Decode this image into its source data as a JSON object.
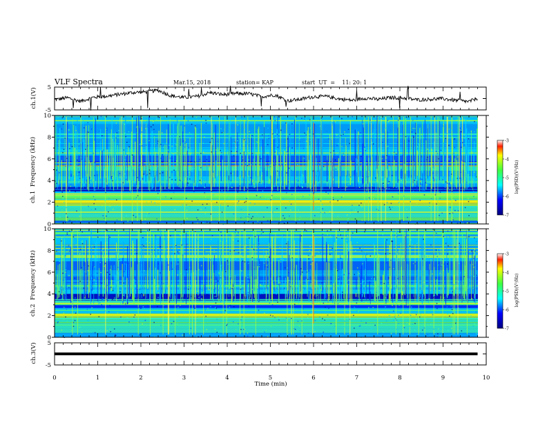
{
  "header": {
    "title": "VLF Spectra",
    "date": "Mar.15, 2018",
    "station": "station= KAP",
    "start": "start  UT  =    11: 20: 1"
  },
  "chart_data": [
    {
      "type": "line",
      "panel": "ch1-waveform",
      "ylabel": "ch.1(V)",
      "ylim": [
        -5,
        5
      ],
      "yticks": [
        5,
        -5
      ],
      "xlim": [
        0,
        10
      ],
      "series": [
        {
          "x": [
            0,
            0.3,
            0.6,
            0.9,
            1.2,
            1.5,
            1.8,
            2.1,
            2.4,
            2.7,
            3.0,
            3.3,
            3.6,
            3.9,
            4.2,
            4.5,
            4.8,
            5.1,
            5.4,
            5.7,
            6.0,
            6.3,
            6.6,
            6.9,
            7.2,
            7.5,
            7.8,
            8.1,
            8.4,
            8.7,
            9.0,
            9.3,
            9.6,
            9.8
          ],
          "values": [
            -0.5,
            0.3,
            -1.2,
            0.5,
            1.0,
            1.8,
            2.6,
            2.9,
            3.6,
            1.2,
            0.4,
            0.9,
            2.6,
            1.7,
            2.2,
            2.1,
            0.8,
            1.6,
            -1.0,
            -0.3,
            0.8,
            0.9,
            -0.2,
            -0.8,
            0.2,
            -0.4,
            0.4,
            0.2,
            -0.6,
            -0.3,
            -0.1,
            -0.8,
            -1.4,
            0.2
          ]
        }
      ]
    },
    {
      "type": "heatmap",
      "panel": "ch1-spectrogram",
      "ylabel": "ch.1  Frequency (kHz)",
      "ylim": [
        0,
        10
      ],
      "yticks": [
        0,
        2,
        4,
        6,
        8,
        10
      ],
      "xlim": [
        0,
        10
      ],
      "colorbar": {
        "label": "log(PSD)(V²/Hz)",
        "range": [
          -7,
          -3
        ],
        "ticks": [
          -3,
          -4,
          -5,
          -6,
          -7
        ]
      }
    },
    {
      "type": "heatmap",
      "panel": "ch2-spectrogram",
      "ylabel": "ch.2  Frequency (kHz)",
      "ylim": [
        0,
        10
      ],
      "yticks": [
        0,
        2,
        4,
        6,
        8,
        10
      ],
      "xlim": [
        0,
        10
      ],
      "colorbar": {
        "label": "log(PSD)(V²/Hz)",
        "range": [
          -7,
          -3
        ],
        "ticks": [
          -3,
          -4,
          -5,
          -6,
          -7
        ]
      }
    },
    {
      "type": "line",
      "panel": "ch3-waveform",
      "ylabel": "ch.3(V)",
      "ylim": [
        -5,
        5
      ],
      "yticks": [
        5,
        -5
      ],
      "xlim": [
        0,
        9.8
      ],
      "series": [
        {
          "x": [
            0,
            9.8
          ],
          "values": [
            0,
            0
          ]
        }
      ]
    }
  ],
  "xaxis": {
    "label": "Time (min)",
    "ticks": [
      "0",
      "1",
      "2",
      "3",
      "4",
      "5",
      "6",
      "7",
      "8",
      "9",
      "10"
    ]
  },
  "colors": {
    "low": "#00008b",
    "mid": "#00d0ff",
    "green": "#40ff40",
    "yellow": "#ffff00",
    "high": "#ff0000"
  }
}
